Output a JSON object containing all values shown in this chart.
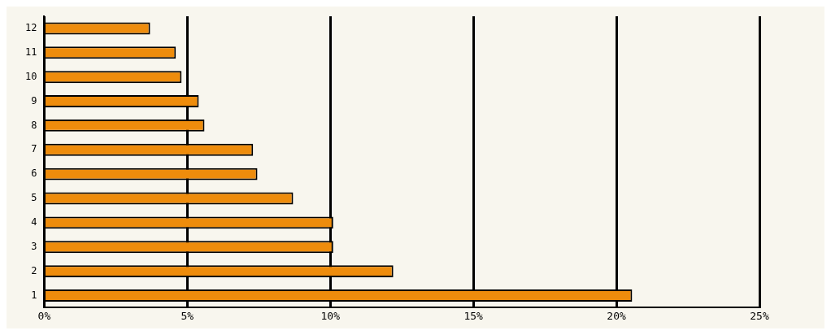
{
  "chart_data": {
    "type": "bar",
    "orientation": "horizontal",
    "categories": [
      "12",
      "11",
      "10",
      "9",
      "8",
      "7",
      "6",
      "5",
      "4",
      "3",
      "2",
      "1"
    ],
    "values": [
      3.7,
      4.6,
      4.8,
      5.4,
      5.6,
      7.3,
      7.45,
      8.7,
      10.1,
      10.1,
      12.2,
      20.55
    ],
    "color": "#ee8c0c",
    "xlim": [
      0,
      25
    ],
    "xticks": [
      {
        "value": 0,
        "label": "0%"
      },
      {
        "value": 5,
        "label": "5%"
      },
      {
        "value": 10,
        "label": "10%"
      },
      {
        "value": 15,
        "label": "15%"
      },
      {
        "value": 20,
        "label": "20%"
      },
      {
        "value": 25,
        "label": "25%"
      }
    ],
    "grid": "x",
    "legend": false
  }
}
